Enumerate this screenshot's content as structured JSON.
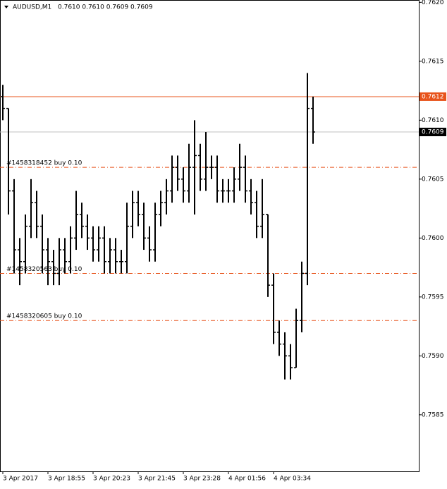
{
  "chart_data": {
    "type": "ohlc",
    "title": "AUDUSD,M1",
    "header_prices": "0.7610 0.7610 0.7609 0.7609",
    "color": "#000000",
    "categories": [
      "3 Apr 2017",
      null,
      null,
      null,
      null,
      null,
      null,
      null,
      "3 Apr 18:55",
      null,
      null,
      null,
      null,
      null,
      null,
      null,
      "3 Apr 20:23",
      null,
      null,
      null,
      null,
      null,
      null,
      null,
      "3 Apr 21:45",
      null,
      null,
      null,
      null,
      null,
      null,
      null,
      "3 Apr 23:28",
      null,
      null,
      null,
      null,
      null,
      null,
      null,
      "4 Apr 01:56",
      null,
      null,
      null,
      null,
      null,
      null,
      null,
      "4 Apr 03:34",
      null,
      null,
      null,
      null,
      null,
      null,
      null
    ],
    "open": [
      0.7612,
      0.7611,
      0.7604,
      0.7599,
      0.7598,
      0.7601,
      0.7603,
      0.7601,
      0.7599,
      0.7598,
      0.7597,
      0.7599,
      0.7598,
      0.76,
      0.7602,
      0.7601,
      0.76,
      0.7599,
      0.76,
      0.7598,
      0.7599,
      0.7598,
      0.7598,
      0.7601,
      0.7603,
      0.7602,
      0.76,
      0.7599,
      0.7602,
      0.7603,
      0.7604,
      0.7606,
      0.7605,
      0.7604,
      0.7606,
      0.7607,
      0.7605,
      0.7606,
      0.7606,
      0.7604,
      0.7604,
      0.7604,
      0.7605,
      0.7606,
      0.7604,
      0.7603,
      0.7601,
      0.7602,
      0.7596,
      0.7592,
      0.7591,
      0.759,
      0.7589,
      0.7593,
      0.7597,
      0.7611
    ],
    "high": [
      0.7613,
      0.7611,
      0.7605,
      0.76,
      0.7602,
      0.7605,
      0.7604,
      0.7602,
      0.76,
      0.7599,
      0.76,
      0.76,
      0.7601,
      0.7604,
      0.7603,
      0.7602,
      0.7601,
      0.7601,
      0.7601,
      0.76,
      0.76,
      0.7599,
      0.7603,
      0.7604,
      0.7604,
      0.7603,
      0.7601,
      0.7603,
      0.7604,
      0.7605,
      0.7607,
      0.7607,
      0.7606,
      0.7608,
      0.761,
      0.7608,
      0.7609,
      0.7607,
      0.7607,
      0.7605,
      0.7605,
      0.7606,
      0.7608,
      0.7607,
      0.7605,
      0.7604,
      0.7605,
      0.7602,
      0.7597,
      0.7593,
      0.7592,
      0.7591,
      0.7594,
      0.7598,
      0.7614,
      0.7612
    ],
    "low": [
      0.761,
      0.7602,
      0.7597,
      0.7596,
      0.7597,
      0.76,
      0.76,
      0.7597,
      0.7596,
      0.7596,
      0.7596,
      0.7597,
      0.7597,
      0.7599,
      0.76,
      0.7599,
      0.7598,
      0.7598,
      0.7597,
      0.7597,
      0.7597,
      0.7597,
      0.7597,
      0.76,
      0.7601,
      0.7599,
      0.7598,
      0.7598,
      0.7601,
      0.7602,
      0.7603,
      0.7604,
      0.7603,
      0.7603,
      0.7602,
      0.7604,
      0.7604,
      0.7605,
      0.7603,
      0.7603,
      0.7603,
      0.7603,
      0.7604,
      0.7603,
      0.7602,
      0.76,
      0.76,
      0.7595,
      0.7591,
      0.759,
      0.7588,
      0.7588,
      0.7589,
      0.7592,
      0.7596,
      0.7608
    ],
    "close": [
      0.7611,
      0.7604,
      0.7599,
      0.7598,
      0.7601,
      0.7603,
      0.7601,
      0.7599,
      0.7598,
      0.7597,
      0.7599,
      0.7598,
      0.76,
      0.7602,
      0.7601,
      0.76,
      0.7599,
      0.76,
      0.7598,
      0.7599,
      0.7598,
      0.7598,
      0.7601,
      0.7603,
      0.7602,
      0.76,
      0.7599,
      0.7602,
      0.7603,
      0.7604,
      0.7606,
      0.7605,
      0.7604,
      0.7606,
      0.7607,
      0.7605,
      0.7606,
      0.7606,
      0.7604,
      0.7604,
      0.7604,
      0.7605,
      0.7606,
      0.7604,
      0.7603,
      0.7601,
      0.7602,
      0.7596,
      0.7592,
      0.7591,
      0.759,
      0.7589,
      0.7593,
      0.7597,
      0.7611,
      0.7609
    ],
    "ylim": [
      0.75802,
      0.76202
    ],
    "yticks": [
      {
        "value": 0.762,
        "label": "0.7620"
      },
      0.7615,
      {
        "value": 0.761,
        "label": "0.7610"
      },
      0.7605,
      {
        "value": 0.76,
        "label": "0.7600"
      },
      0.7595,
      {
        "value": 0.759,
        "label": "0.7590"
      },
      0.7585
    ],
    "price_lines": [
      {
        "value": 0.7612,
        "color": "#e8541c"
      },
      {
        "value": 0.7609,
        "color": "#c0c0c0"
      }
    ],
    "order_lines": [
      {
        "value": 0.7606,
        "label": "#1458318452 buy 0.10",
        "color": "#e8541c"
      },
      {
        "value": 0.7597,
        "label": "#1458320563 buy 0.10",
        "color": "#e8541c"
      },
      {
        "value": 0.7593,
        "label": "#1458320605 buy 0.10",
        "color": "#e8541c"
      }
    ]
  }
}
